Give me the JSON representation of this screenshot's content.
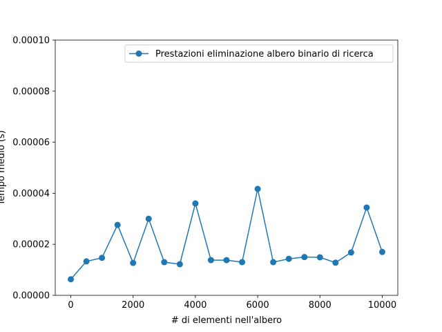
{
  "chart_data": {
    "type": "line",
    "title": "",
    "xlabel": "# di elementi nell'albero",
    "ylabel": "Tempo medio (s)",
    "xlim": [
      -500,
      10500
    ],
    "ylim": [
      0,
      0.0001
    ],
    "xticks": [
      0,
      2000,
      4000,
      6000,
      8000,
      10000
    ],
    "xtick_labels": [
      "0",
      "2000",
      "4000",
      "6000",
      "8000",
      "10000"
    ],
    "yticks": [
      0,
      2e-05,
      4e-05,
      6e-05,
      8e-05,
      0.0001
    ],
    "ytick_labels": [
      "0.00000",
      "0.00002",
      "0.00004",
      "0.00006",
      "0.00008",
      "0.00010"
    ],
    "grid": false,
    "legend_position": "top-right",
    "series_color": "#1f77b4",
    "series": [
      {
        "name": "Prestazioni eliminazione albero binario di ricerca",
        "marker": "circle",
        "x": [
          0,
          500,
          1000,
          1500,
          2000,
          2500,
          3000,
          3500,
          4000,
          4500,
          5000,
          5500,
          6000,
          6500,
          7000,
          7500,
          8000,
          8500,
          9000,
          9500,
          10000
        ],
        "y": [
          6.3e-06,
          1.33e-05,
          1.47e-05,
          2.76e-05,
          1.27e-05,
          3e-05,
          1.3e-05,
          1.22e-05,
          3.6e-05,
          1.38e-05,
          1.38e-05,
          1.3e-05,
          4.17e-05,
          1.3e-05,
          1.43e-05,
          1.5e-05,
          1.49e-05,
          1.28e-05,
          1.68e-05,
          3.44e-05,
          1.7e-05
        ]
      }
    ]
  }
}
